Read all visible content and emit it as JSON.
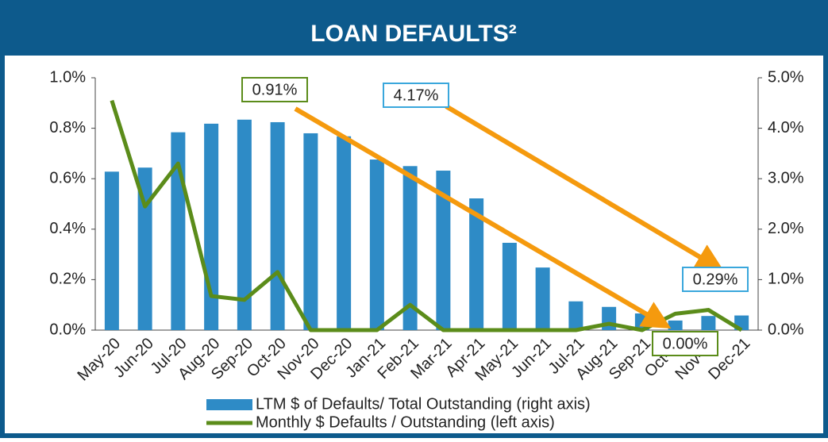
{
  "chart_data": {
    "type": "combo",
    "title": "LOAN DEFAULTS²",
    "categories": [
      "May-20",
      "Jun-20",
      "Jul-20",
      "Aug-20",
      "Sep-20",
      "Oct-20",
      "Nov-20",
      "Dec-20",
      "Jan-21",
      "Feb-21",
      "Mar-21",
      "Apr-21",
      "May-21",
      "Jun-21",
      "Jul-21",
      "Aug-21",
      "Sep-21",
      "Oct-21",
      "Nov-21",
      "Dec-21"
    ],
    "series": [
      {
        "name": "LTM $ of Defaults/ Total Outstanding (right axis)",
        "type": "bar",
        "axis": "y2",
        "color": "#2e8bc6",
        "values": [
          3.14,
          3.22,
          3.92,
          4.09,
          4.17,
          4.12,
          3.9,
          3.84,
          3.38,
          3.25,
          3.16,
          2.61,
          1.73,
          1.24,
          0.57,
          0.46,
          0.33,
          0.19,
          0.28,
          0.29
        ]
      },
      {
        "name": "Monthly $ Defaults / Outstanding (left axis)",
        "type": "line",
        "color": "#5b8c1a",
        "values": [
          0.91,
          0.49,
          0.66,
          0.135,
          0.12,
          0.23,
          0,
          0,
          0,
          0.1,
          0,
          0,
          0,
          0,
          0,
          0.025,
          0,
          0.065,
          0.08,
          0
        ]
      }
    ],
    "ylim": [
      0,
      1.0
    ],
    "yticks": [
      {
        "value": 0,
        "label": "0.0%"
      },
      {
        "value": 0.2,
        "label": "0.2%"
      },
      {
        "value": 0.4,
        "label": "0.4%"
      },
      {
        "value": 0.6,
        "label": "0.6%"
      },
      {
        "value": 0.8,
        "label": "0.8%"
      },
      {
        "value": 1.0,
        "label": "1.0%"
      }
    ],
    "y2lim": [
      0,
      5.0
    ],
    "y2ticks": [
      {
        "value": 0,
        "label": "0.0%"
      },
      {
        "value": 1,
        "label": "1.0%"
      },
      {
        "value": 2,
        "label": "2.0%"
      },
      {
        "value": 3,
        "label": "3.0%"
      },
      {
        "value": 4,
        "label": "4.0%"
      },
      {
        "value": 5,
        "label": "5.0%"
      }
    ],
    "annotations": [
      "0.91%",
      "4.17%",
      "0.29%",
      "0.00%"
    ],
    "grid": false
  }
}
